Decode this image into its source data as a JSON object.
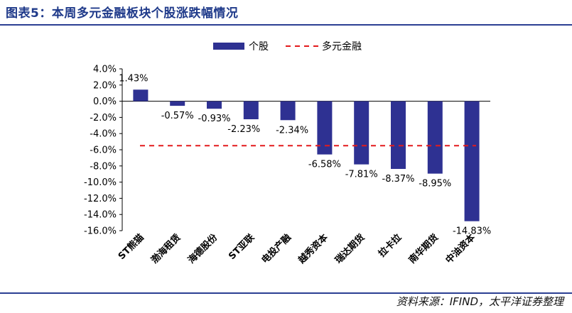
{
  "header": {
    "title": "图表5：本周多元金融板块个股涨跌幅情况"
  },
  "footer": {
    "source": "资料来源：IFIND，太平洋证券整理"
  },
  "chart_data": {
    "type": "bar",
    "categories": [
      "ST熊猫",
      "渤海租赁",
      "海德股份",
      "ST亚联",
      "电投产融",
      "越秀资本",
      "瑞达期货",
      "拉卡拉",
      "南华期货",
      "中油资本"
    ],
    "series": [
      {
        "name": "个股",
        "values": [
          1.43,
          -0.57,
          -0.93,
          -2.23,
          -2.34,
          -6.58,
          -7.81,
          -8.37,
          -8.95,
          -14.83
        ],
        "color": "#2e3192"
      }
    ],
    "data_labels": [
      "1.43%",
      "-0.57%",
      "-0.93%",
      "-2.23%",
      "-2.34%",
      "-6.58%",
      "-7.81%",
      "-8.37%",
      "-8.95%",
      "-14.83%"
    ],
    "reference_line": {
      "name": "多元金融",
      "value": -5.5,
      "color": "#e31a1c",
      "style": "dashed"
    },
    "ylim": [
      -16,
      4
    ],
    "yticks": [
      4,
      2,
      0,
      -2,
      -4,
      -6,
      -8,
      -10,
      -12,
      -14,
      -16
    ],
    "ytick_labels": [
      "4.0%",
      "2.0%",
      "0.0%",
      "-2.0%",
      "-4.0%",
      "-6.0%",
      "-8.0%",
      "-10.0%",
      "-12.0%",
      "-14.0%",
      "-16.0%"
    ],
    "legend": {
      "position": "top",
      "items": [
        "个股",
        "多元金融"
      ]
    },
    "grid": false
  }
}
